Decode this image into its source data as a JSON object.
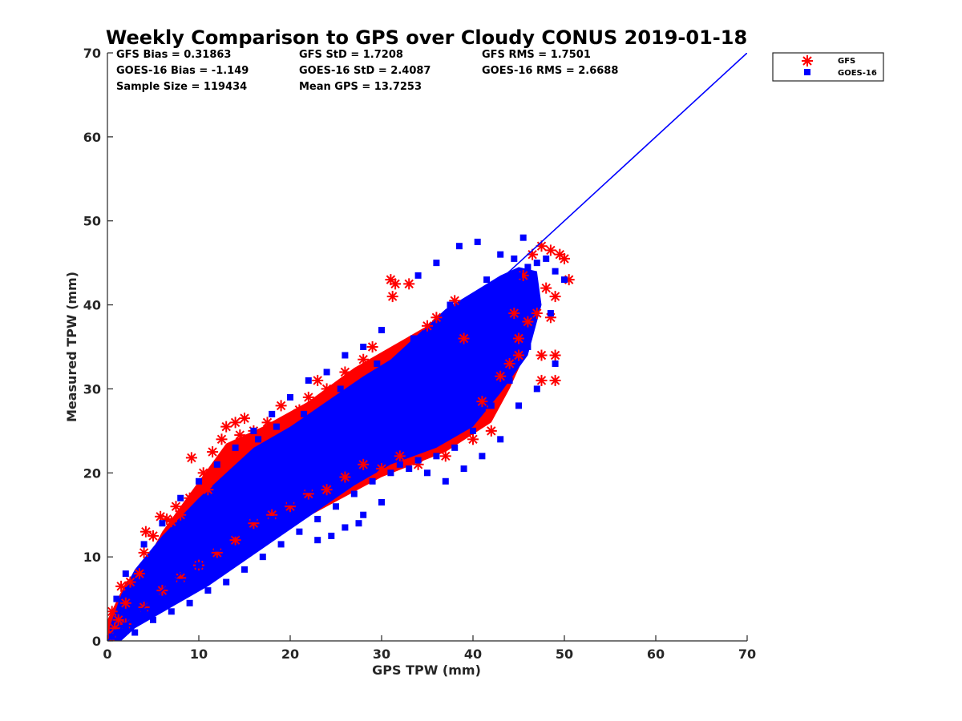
{
  "chart_data": {
    "type": "scatter",
    "title": "Weekly Comparison to GPS over Cloudy CONUS 2019-01-18",
    "xlabel": "GPS TPW (mm)",
    "ylabel": "Measured TPW (mm)",
    "xlim": [
      0,
      70
    ],
    "ylim": [
      0,
      70
    ],
    "xticks": [
      "0",
      "10",
      "20",
      "30",
      "40",
      "50",
      "60",
      "70"
    ],
    "yticks": [
      "0",
      "10",
      "20",
      "30",
      "40",
      "50",
      "60",
      "70"
    ],
    "grid": false,
    "legend_position": "outside-top-right",
    "stats": [
      [
        "GFS Bias = 0.31863",
        "GFS StD = 1.7208",
        "GFS RMS = 1.7501"
      ],
      [
        "GOES-16 Bias = -1.149",
        "GOES-16 StD = 2.4087",
        "GOES-16 RMS = 2.6688"
      ],
      [
        "Sample Size = 119434",
        "Mean GPS = 13.7253"
      ]
    ],
    "reference_line": {
      "x": [
        0,
        70
      ],
      "y": [
        0,
        70
      ],
      "color": "#0000ff"
    },
    "series": [
      {
        "name": "GFS",
        "marker": "asterisk",
        "color": "#ff0000",
        "points": [
          [
            0.3,
            0.5
          ],
          [
            0.8,
            1.5
          ],
          [
            1.2,
            2.5
          ],
          [
            0.5,
            3.5
          ],
          [
            2.0,
            4.5
          ],
          [
            1.5,
            6.5
          ],
          [
            2.5,
            7.0
          ],
          [
            3.5,
            8.0
          ],
          [
            4.0,
            10.5
          ],
          [
            4.2,
            13.0
          ],
          [
            5.0,
            12.5
          ],
          [
            5.8,
            14.8
          ],
          [
            6.5,
            14.5
          ],
          [
            7.0,
            14.2
          ],
          [
            8.0,
            15.0
          ],
          [
            9.2,
            21.8
          ],
          [
            10.5,
            20.0
          ],
          [
            11.5,
            22.5
          ],
          [
            13.0,
            25.5
          ],
          [
            14.0,
            26.0
          ],
          [
            15.0,
            26.5
          ],
          [
            16.0,
            25.0
          ],
          [
            17.0,
            24.5
          ],
          [
            19.0,
            28.0
          ],
          [
            21.0,
            27.5
          ],
          [
            22.0,
            29.0
          ],
          [
            24.0,
            30.0
          ],
          [
            26.0,
            32.0
          ],
          [
            28.0,
            33.5
          ],
          [
            31.0,
            43.0
          ],
          [
            31.5,
            42.5
          ],
          [
            33.0,
            42.5
          ],
          [
            31.2,
            41.0
          ],
          [
            35.0,
            37.5
          ],
          [
            38.0,
            40.5
          ],
          [
            41.0,
            28.5
          ],
          [
            42.0,
            27.5
          ],
          [
            43.0,
            31.5
          ],
          [
            44.0,
            33.0
          ],
          [
            45.0,
            34.0
          ],
          [
            46.0,
            38.0
          ],
          [
            46.5,
            46.0
          ],
          [
            47.5,
            47.0
          ],
          [
            48.5,
            46.5
          ],
          [
            49.5,
            46.0
          ],
          [
            50.0,
            45.5
          ],
          [
            48.0,
            42.0
          ],
          [
            49.0,
            41.0
          ],
          [
            50.5,
            43.0
          ],
          [
            47.0,
            39.0
          ],
          [
            48.5,
            38.5
          ],
          [
            47.5,
            34.0
          ],
          [
            49.0,
            34.0
          ],
          [
            47.5,
            31.0
          ],
          [
            49.0,
            31.0
          ],
          [
            45.0,
            36.0
          ],
          [
            42.0,
            25.0
          ],
          [
            40.0,
            24.0
          ],
          [
            37.0,
            22.0
          ],
          [
            34.0,
            21.0
          ],
          [
            32.0,
            22.0
          ],
          [
            30.0,
            20.5
          ],
          [
            28.0,
            21.0
          ],
          [
            26.0,
            19.5
          ],
          [
            24.0,
            18.0
          ],
          [
            22.0,
            17.5
          ],
          [
            20.0,
            16.0
          ],
          [
            18.0,
            15.0
          ],
          [
            16.0,
            14.0
          ],
          [
            14.0,
            12.0
          ],
          [
            12.0,
            10.5
          ],
          [
            10.0,
            9.0
          ],
          [
            8.0,
            7.5
          ],
          [
            6.0,
            6.0
          ],
          [
            4.0,
            4.0
          ],
          [
            2.0,
            2.0
          ],
          [
            12.5,
            24.0
          ],
          [
            14.5,
            24.5
          ],
          [
            17.5,
            26.0
          ],
          [
            23.0,
            31.0
          ],
          [
            29.0,
            35.0
          ],
          [
            36.0,
            38.5
          ],
          [
            39.0,
            36.0
          ],
          [
            44.5,
            39.0
          ],
          [
            45.5,
            43.5
          ],
          [
            11.0,
            18.0
          ],
          [
            9.0,
            17.0
          ],
          [
            7.5,
            16.0
          ]
        ]
      },
      {
        "name": "GOES-16",
        "marker": "square",
        "color": "#0000ff",
        "points": [
          [
            0.5,
            0.5
          ],
          [
            1.0,
            1.0
          ],
          [
            2.0,
            1.8
          ],
          [
            3.0,
            2.5
          ],
          [
            4.0,
            3.5
          ],
          [
            5.0,
            4.2
          ],
          [
            6.0,
            5.0
          ],
          [
            7.0,
            6.0
          ],
          [
            8.0,
            7.0
          ],
          [
            9.0,
            8.0
          ],
          [
            10.0,
            9.0
          ],
          [
            11.0,
            10.0
          ],
          [
            12.0,
            11.0
          ],
          [
            13.0,
            12.0
          ],
          [
            14.0,
            12.8
          ],
          [
            15.0,
            13.5
          ],
          [
            16.0,
            14.5
          ],
          [
            17.0,
            15.5
          ],
          [
            18.0,
            16.5
          ],
          [
            19.0,
            17.5
          ],
          [
            20.0,
            18.5
          ],
          [
            21.0,
            19.5
          ],
          [
            22.0,
            20.5
          ],
          [
            23.0,
            21.5
          ],
          [
            24.0,
            22.5
          ],
          [
            25.0,
            23.5
          ],
          [
            26.0,
            24.5
          ],
          [
            27.0,
            25.5
          ],
          [
            28.0,
            26.5
          ],
          [
            29.0,
            27.5
          ],
          [
            30.0,
            28.5
          ],
          [
            31.0,
            29.5
          ],
          [
            32.0,
            30.5
          ],
          [
            33.0,
            31.5
          ],
          [
            34.0,
            32.5
          ],
          [
            35.0,
            33.5
          ],
          [
            36.0,
            34.5
          ],
          [
            37.0,
            35.5
          ],
          [
            38.0,
            36.5
          ],
          [
            39.0,
            37.5
          ],
          [
            40.0,
            38.5
          ],
          [
            41.0,
            39.5
          ],
          [
            42.0,
            40.5
          ],
          [
            43.0,
            41.5
          ],
          [
            44.0,
            42.5
          ],
          [
            45.0,
            43.5
          ],
          [
            46.0,
            44.5
          ],
          [
            47.0,
            45.0
          ],
          [
            48.0,
            45.5
          ],
          [
            49.0,
            44.0
          ],
          [
            50.0,
            43.0
          ],
          [
            40.5,
            47.5
          ],
          [
            38.5,
            47.0
          ],
          [
            45.5,
            48.0
          ],
          [
            43.0,
            46.0
          ],
          [
            36.0,
            45.0
          ],
          [
            34.0,
            43.5
          ],
          [
            30.0,
            37.0
          ],
          [
            28.0,
            35.0
          ],
          [
            26.0,
            34.0
          ],
          [
            24.0,
            32.0
          ],
          [
            22.0,
            31.0
          ],
          [
            20.0,
            29.0
          ],
          [
            18.0,
            27.0
          ],
          [
            16.0,
            25.0
          ],
          [
            14.0,
            23.0
          ],
          [
            12.0,
            21.0
          ],
          [
            10.0,
            19.0
          ],
          [
            8.0,
            17.0
          ],
          [
            6.0,
            14.0
          ],
          [
            4.0,
            11.5
          ],
          [
            2.0,
            8.0
          ],
          [
            1.0,
            5.0
          ],
          [
            3.0,
            1.0
          ],
          [
            5.0,
            2.5
          ],
          [
            7.0,
            3.5
          ],
          [
            9.0,
            4.5
          ],
          [
            11.0,
            6.0
          ],
          [
            13.0,
            7.0
          ],
          [
            15.0,
            8.5
          ],
          [
            17.0,
            10.0
          ],
          [
            19.0,
            11.5
          ],
          [
            21.0,
            13.0
          ],
          [
            23.0,
            14.5
          ],
          [
            25.0,
            16.0
          ],
          [
            27.0,
            17.5
          ],
          [
            29.0,
            19.0
          ],
          [
            31.0,
            20.0
          ],
          [
            33.0,
            20.5
          ],
          [
            35.0,
            20.0
          ],
          [
            37.0,
            19.0
          ],
          [
            39.0,
            20.5
          ],
          [
            41.0,
            22.0
          ],
          [
            43.0,
            24.0
          ],
          [
            45.0,
            28.0
          ],
          [
            47.0,
            30.0
          ],
          [
            49.0,
            33.0
          ],
          [
            27.5,
            14.0
          ],
          [
            28.0,
            15.0
          ],
          [
            30.0,
            16.5
          ],
          [
            24.5,
            12.5
          ],
          [
            26.0,
            13.5
          ],
          [
            23.0,
            12.0
          ],
          [
            16.5,
            24.0
          ],
          [
            18.5,
            25.5
          ],
          [
            21.5,
            27.0
          ],
          [
            25.5,
            30.0
          ],
          [
            29.5,
            33.0
          ],
          [
            33.5,
            36.0
          ],
          [
            37.5,
            40.0
          ],
          [
            41.5,
            43.0
          ],
          [
            44.5,
            45.5
          ],
          [
            46.5,
            42.0
          ],
          [
            48.5,
            39.0
          ],
          [
            46.0,
            35.0
          ],
          [
            44.0,
            31.0
          ],
          [
            42.0,
            28.0
          ],
          [
            40.0,
            25.0
          ],
          [
            38.0,
            23.0
          ],
          [
            36.0,
            22.0
          ],
          [
            34.0,
            21.5
          ],
          [
            32.0,
            21.0
          ],
          [
            30.0,
            22.0
          ],
          [
            28.0,
            23.0
          ],
          [
            26.0,
            22.0
          ],
          [
            24.0,
            20.0
          ],
          [
            22.0,
            18.0
          ],
          [
            20.0,
            16.5
          ],
          [
            18.0,
            14.5
          ],
          [
            16.0,
            12.5
          ],
          [
            14.0,
            11.0
          ],
          [
            12.0,
            9.5
          ],
          [
            10.0,
            8.0
          ],
          [
            8.0,
            6.0
          ],
          [
            6.0,
            4.5
          ],
          [
            4.0,
            2.8
          ],
          [
            2.0,
            1.2
          ]
        ]
      }
    ]
  }
}
